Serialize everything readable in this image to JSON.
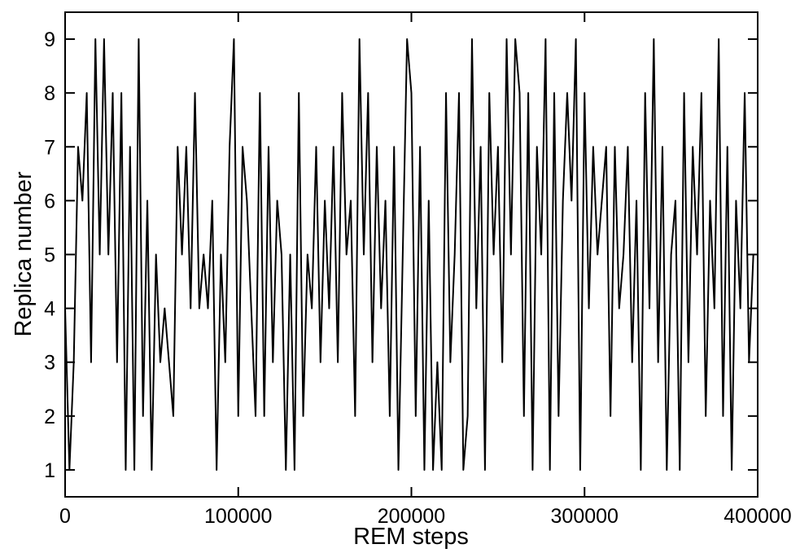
{
  "chart_data": {
    "type": "line",
    "xlabel": "REM steps",
    "ylabel": "Replica number",
    "xlim": [
      0,
      400000
    ],
    "xticks": [
      0,
      100000,
      200000,
      300000,
      400000
    ],
    "ylim": [
      0.5,
      9.5
    ],
    "yticks": [
      1,
      2,
      3,
      4,
      5,
      6,
      7,
      8,
      9
    ],
    "x": [
      0,
      2500,
      5000,
      7500,
      10000,
      12500,
      15000,
      17500,
      20000,
      22500,
      25000,
      27500,
      30000,
      32500,
      35000,
      37500,
      40000,
      42500,
      45000,
      47500,
      50000,
      52500,
      55000,
      57500,
      60000,
      62500,
      65000,
      67500,
      70000,
      72500,
      75000,
      77500,
      80000,
      82500,
      85000,
      87500,
      90000,
      92500,
      95000,
      97500,
      100000,
      102500,
      105000,
      107500,
      110000,
      112500,
      115000,
      117500,
      120000,
      122500,
      125000,
      127500,
      130000,
      132500,
      135000,
      137500,
      140000,
      142500,
      145000,
      147500,
      150000,
      152500,
      155000,
      157500,
      160000,
      162500,
      165000,
      167500,
      170000,
      172500,
      175000,
      177500,
      180000,
      182500,
      185000,
      187500,
      190000,
      192500,
      195000,
      197500,
      200000,
      202500,
      205000,
      207500,
      210000,
      212500,
      215000,
      217500,
      220000,
      222500,
      225000,
      227500,
      230000,
      232500,
      235000,
      237500,
      240000,
      242500,
      245000,
      247500,
      250000,
      252500,
      255000,
      257500,
      260000,
      262500,
      265000,
      267500,
      270000,
      272500,
      275000,
      277500,
      280000,
      282500,
      285000,
      287500,
      290000,
      292500,
      295000,
      297500,
      300000,
      302500,
      305000,
      307500,
      310000,
      312500,
      315000,
      317500,
      320000,
      322500,
      325000,
      327500,
      330000,
      332500,
      335000,
      337500,
      340000,
      342500,
      345000,
      347500,
      350000,
      352500,
      355000,
      357500,
      360000,
      362500,
      365000,
      367500,
      370000,
      372500,
      375000,
      377500,
      380000,
      382500,
      385000,
      387500,
      390000,
      392500,
      395000,
      397500
    ],
    "series": [
      {
        "color": "#000000",
        "values": [
          4,
          1,
          3,
          7,
          6,
          8,
          3,
          9,
          5,
          9,
          5,
          8,
          3,
          8,
          1,
          7,
          1,
          9,
          2,
          6,
          1,
          5,
          3,
          4,
          3,
          2,
          7,
          5,
          7,
          4,
          8,
          4,
          5,
          4,
          6,
          1,
          5,
          3,
          7,
          9,
          2,
          7,
          6,
          4,
          2,
          8,
          2,
          7,
          3,
          6,
          5,
          1,
          5,
          1,
          8,
          2,
          5,
          4,
          7,
          3,
          6,
          4,
          7,
          3,
          8,
          5,
          6,
          2,
          9,
          5,
          8,
          3,
          7,
          4,
          6,
          2,
          7,
          1,
          5,
          9,
          8,
          2,
          7,
          1,
          6,
          1,
          3,
          1,
          8,
          3,
          5,
          8,
          1,
          2,
          9,
          4,
          7,
          1,
          8,
          5,
          7,
          3,
          9,
          5,
          9,
          8,
          2,
          8,
          1,
          7,
          5,
          9,
          1,
          8,
          2,
          6,
          8,
          6,
          9,
          1,
          8,
          4,
          7,
          5,
          6,
          7,
          2,
          7,
          4,
          5,
          7,
          3,
          6,
          1,
          8,
          4,
          9,
          3,
          7,
          1,
          5,
          6,
          1,
          8,
          3,
          7,
          5,
          8,
          2,
          6,
          4,
          9,
          2,
          7,
          1,
          6,
          4,
          8,
          3,
          5
        ]
      }
    ]
  }
}
